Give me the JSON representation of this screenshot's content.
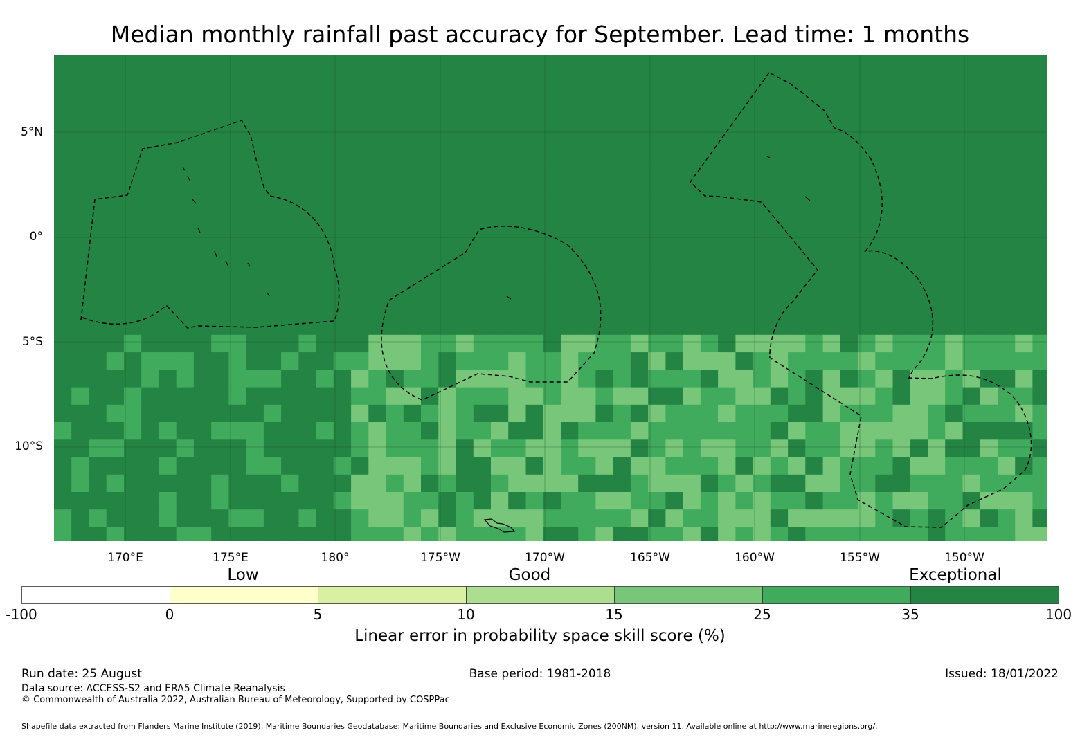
{
  "title": "Median monthly rainfall past accuracy for September. Lead time: 1 months",
  "lat_labels": [
    "5°N",
    "0°",
    "5°S",
    "10°S"
  ],
  "lon_labels": [
    "170°E",
    "175°E",
    "180°",
    "175°W",
    "170°W",
    "165°W",
    "160°W",
    "155°W",
    "150°W"
  ],
  "category_labels": [
    "Low",
    "Good",
    "Exceptional"
  ],
  "colorbar": {
    "ticks": [
      "-100",
      "0",
      "5",
      "10",
      "15",
      "25",
      "35",
      "100"
    ],
    "colors": [
      "#ffffff",
      "#ffffcc",
      "#d9f0a3",
      "#addd8e",
      "#78c679",
      "#41ab5d",
      "#238443"
    ],
    "title": "Linear error in probability space skill score (%)"
  },
  "footer": {
    "run_date": "Run date: 25 August",
    "base_period": "Base period: 1981-2018",
    "issued": "Issued: 18/01/2022",
    "data_source": "Data source: ACCESS-S2 and ERA5 Climate Reanalysis",
    "copyright": "© Commonwealth of Australia 2022, Australian Bureau of Meteorology, Supported by COSPPac",
    "shapefile": "Shapefile data extracted from Flanders Marine Institute (2019), Maritime Boundaries Geodatabase: Maritime Boundaries and Exclusive Economic Zones (200NM), version 11. Available online at http://www.marineregions.org/."
  }
}
